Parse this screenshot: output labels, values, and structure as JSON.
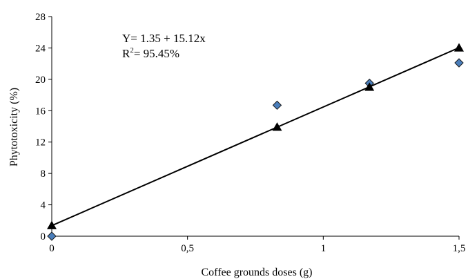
{
  "chart_data": {
    "type": "scatter",
    "xlabel": "Coffee grounds doses (g)",
    "ylabel": "Phytotoxicity (%)",
    "xlim": [
      0,
      1.5
    ],
    "ylim": [
      0,
      28
    ],
    "x_ticks": [
      "0",
      "0,5",
      "1",
      "1,5"
    ],
    "y_ticks": [
      "0",
      "4",
      "8",
      "12",
      "16",
      "20",
      "24",
      "28"
    ],
    "grid": false,
    "series": [
      {
        "marker": "diamond",
        "color": "#4a7ebb",
        "x": [
          0,
          0.83,
          1.17,
          1.5
        ],
        "y": [
          0,
          16.7,
          19.5,
          22.1
        ]
      },
      {
        "marker": "triangle",
        "color": "#000000",
        "x": [
          0,
          0.83,
          1.17,
          1.5
        ],
        "y": [
          1.35,
          13.9,
          19.0,
          24.0
        ]
      }
    ],
    "fit_line": {
      "intercept": 1.35,
      "slope": 15.12
    },
    "annotations": {
      "equation": "Y= 1.35 + 15.12x",
      "r2_prefix": "R",
      "r2_sup": "2",
      "r2_value": "= 95.45%"
    }
  }
}
